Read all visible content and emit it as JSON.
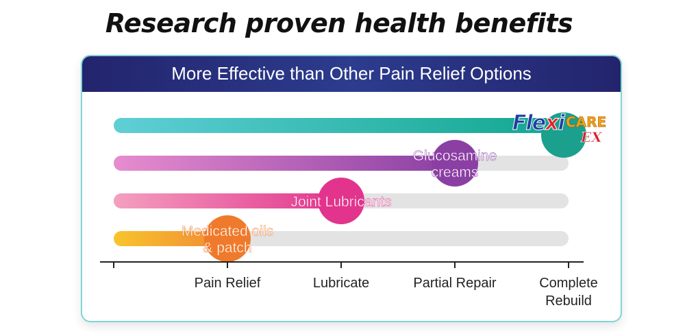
{
  "title": "Research proven health benefits",
  "chart_data": {
    "type": "bar",
    "title": "More Effective than Other Pain Relief Options",
    "xlabel": "",
    "ylabel": "",
    "categories": [
      "Pain Relief",
      "Lubricate",
      "Partial Repair",
      "Complete Rebuild"
    ],
    "category_lines": [
      [
        "Pain Relief"
      ],
      [
        "Lubricate"
      ],
      [
        "Partial Repair"
      ],
      [
        "Complete",
        "Rebuild"
      ]
    ],
    "xlim": [
      0,
      4
    ],
    "series": [
      {
        "name": "FlexiCare EX",
        "label_lines": [],
        "value": 4,
        "gradient": [
          "#5fcfd6",
          "#10a68e"
        ],
        "marker": "#15a690"
      },
      {
        "name": "Glucosamine creams",
        "label_lines": [
          "Glucosamine",
          "creams"
        ],
        "value": 3,
        "gradient": [
          "#e78ccf",
          "#8a3fa3"
        ],
        "marker": "#8b3fa3"
      },
      {
        "name": "Joint Lubricants",
        "label_lines": [
          "Joint Lubricants"
        ],
        "value": 2,
        "gradient": [
          "#f4a0c0",
          "#e2348d"
        ],
        "marker": "#e2348d"
      },
      {
        "name": "Medicated oils & patch",
        "label_lines": [
          "Medicated oils",
          "& patch"
        ],
        "value": 1,
        "gradient": [
          "#f8c42c",
          "#f08a35"
        ],
        "marker": "#ef7a2c"
      }
    ]
  },
  "logo": {
    "text_main": "FlexiCARE",
    "text_top": "CARE",
    "text_sub": "EX"
  },
  "colors": {
    "track": "#e3e3e3",
    "axis": "#222222",
    "header": "#23246d"
  }
}
